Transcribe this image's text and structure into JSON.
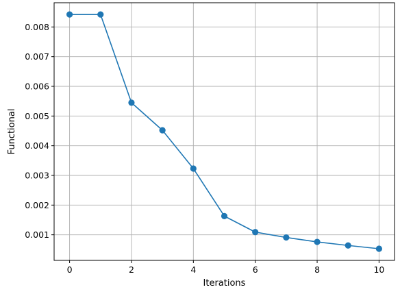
{
  "chart_data": {
    "type": "line",
    "title": "",
    "xlabel": "Iterations",
    "ylabel": "Functional",
    "x": [
      0,
      1,
      2,
      3,
      4,
      5,
      6,
      7,
      8,
      9,
      10
    ],
    "series": [
      {
        "values": [
          0.00842,
          0.00842,
          0.00545,
          0.00452,
          0.00323,
          0.00163,
          0.00109,
          0.00091,
          0.00076,
          0.00064,
          0.00053
        ],
        "color": "#1f77b4",
        "marker": "circle"
      }
    ],
    "xlim": [
      -0.5,
      10.5
    ],
    "ylim": [
      0.000138,
      0.008816
    ],
    "xticks": [
      0,
      2,
      4,
      6,
      8,
      10
    ],
    "yticks": [
      0.001,
      0.002,
      0.003,
      0.004,
      0.005,
      0.006,
      0.007,
      0.008
    ],
    "xtick_labels": [
      "0",
      "2",
      "4",
      "6",
      "8",
      "10"
    ],
    "ytick_labels": [
      "0.001",
      "0.002",
      "0.003",
      "0.004",
      "0.005",
      "0.006",
      "0.007",
      "0.008"
    ],
    "grid": true,
    "legend": "none"
  }
}
